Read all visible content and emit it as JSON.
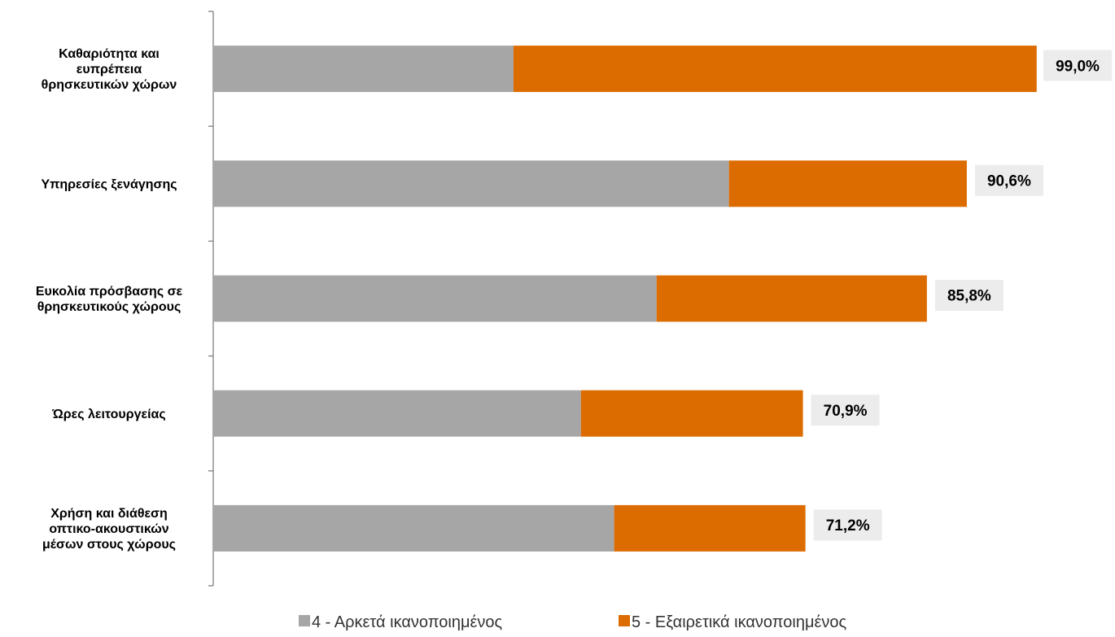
{
  "chart_data": {
    "type": "bar",
    "orientation": "horizontal",
    "stacked": true,
    "categories": [
      [
        "Καθαριότητα και",
        "ευπρέπεια",
        "θρησκευτικών χώρων"
      ],
      [
        "Υπηρεσίες ξενάγησης"
      ],
      [
        "Ευκολία πρόσβασης σε",
        "θρησκευτικούς χώρους"
      ],
      [
        "Ώρες λειτουργείας"
      ],
      [
        "Χρήση και διάθεση",
        "οπτικο-ακουστικών",
        "μέσων στους χώρους"
      ]
    ],
    "series": [
      {
        "name": "4 - Αρκετά ικανοποιημένος",
        "color": "#a6a6a6",
        "values": [
          36.1,
          62.0,
          53.3,
          44.2,
          48.2
        ]
      },
      {
        "name": "5 - Εξαιρετικά ικανοποιημένος",
        "color": "#dd6c00",
        "values": [
          62.9,
          28.6,
          32.5,
          26.7,
          23.0
        ]
      }
    ],
    "totals": [
      99.0,
      90.6,
      85.8,
      70.9,
      71.2
    ],
    "total_labels": [
      "99,0%",
      "90,6%",
      "85,8%",
      "70,9%",
      "71,2%"
    ],
    "total_label_background": "#ececec",
    "xlim": [
      0,
      100
    ],
    "grid": false,
    "legend_position": "bottom",
    "title": "",
    "xlabel": "",
    "ylabel": ""
  }
}
